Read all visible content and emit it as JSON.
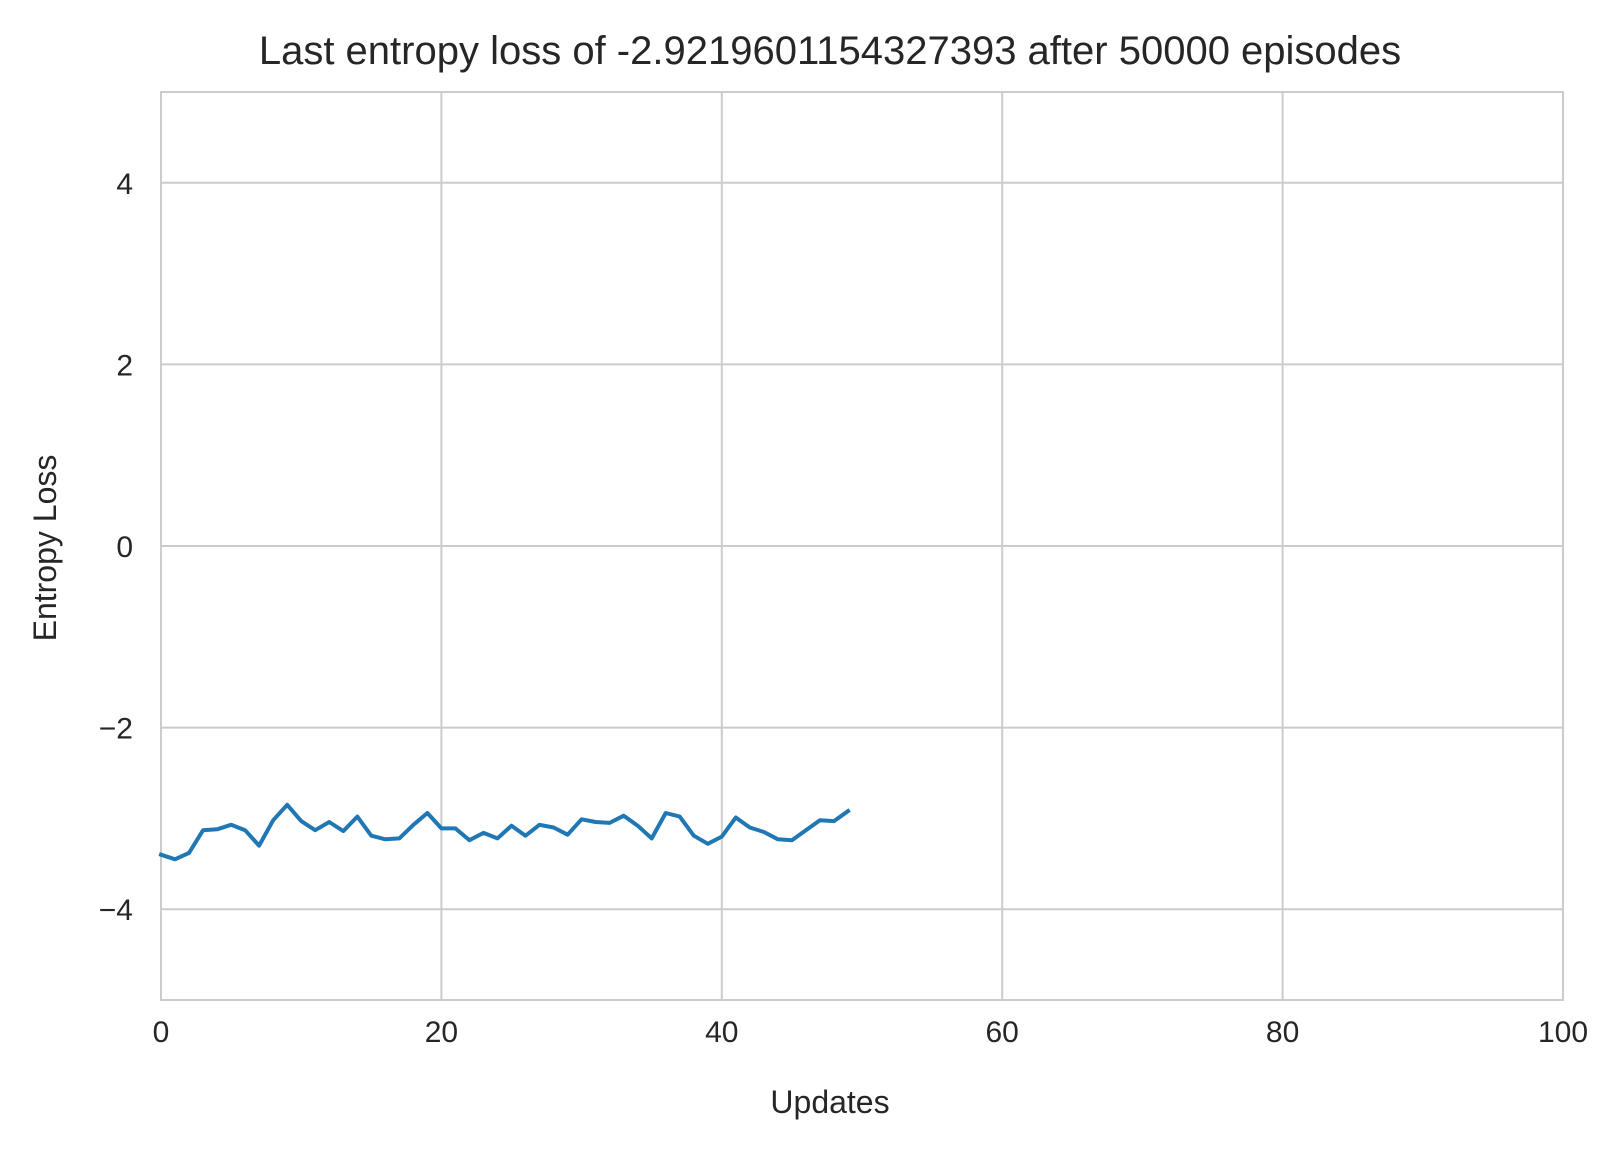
{
  "chart_data": {
    "type": "line",
    "title": "Last entropy loss of -2.9219601154327393 after 50000 episodes",
    "xlabel": "Updates",
    "ylabel": "Entropy Loss",
    "xlim": [
      0,
      100
    ],
    "ylim": [
      -5,
      5
    ],
    "xticks": [
      0,
      20,
      40,
      60,
      80,
      100
    ],
    "xtick_labels": [
      "0",
      "20",
      "40",
      "60",
      "80",
      "100"
    ],
    "yticks": [
      -4,
      -2,
      0,
      2,
      4
    ],
    "ytick_labels": [
      "−4",
      "−2",
      "0",
      "2",
      "4"
    ],
    "grid": true,
    "line_color": "#1f77b4",
    "grid_color": "#cccccc",
    "series": [
      {
        "x": [
          0,
          1,
          2,
          3,
          4,
          5,
          6,
          7,
          8,
          9,
          10,
          11,
          12,
          13,
          14,
          15,
          16,
          17,
          18,
          19,
          20,
          21,
          22,
          23,
          24,
          25,
          26,
          27,
          28,
          29,
          30,
          31,
          32,
          33,
          34,
          35,
          36,
          37,
          38,
          39,
          40,
          41,
          42,
          43,
          44,
          45,
          46,
          47,
          48,
          49
        ],
        "values": [
          -3.4,
          -3.45,
          -3.38,
          -3.13,
          -3.12,
          -3.07,
          -3.13,
          -3.3,
          -3.02,
          -2.85,
          -3.03,
          -3.13,
          -3.04,
          -3.14,
          -2.98,
          -3.19,
          -3.23,
          -3.22,
          -3.07,
          -2.94,
          -3.11,
          -3.11,
          -3.24,
          -3.16,
          -3.22,
          -3.08,
          -3.19,
          -3.07,
          -3.1,
          -3.18,
          -3.01,
          -3.04,
          -3.05,
          -2.97,
          -3.08,
          -3.22,
          -2.94,
          -2.98,
          -3.19,
          -3.28,
          -3.2,
          -2.99,
          -3.1,
          -3.15,
          -3.23,
          -3.24,
          -3.13,
          -3.02,
          -3.03,
          -2.92
        ]
      }
    ]
  }
}
